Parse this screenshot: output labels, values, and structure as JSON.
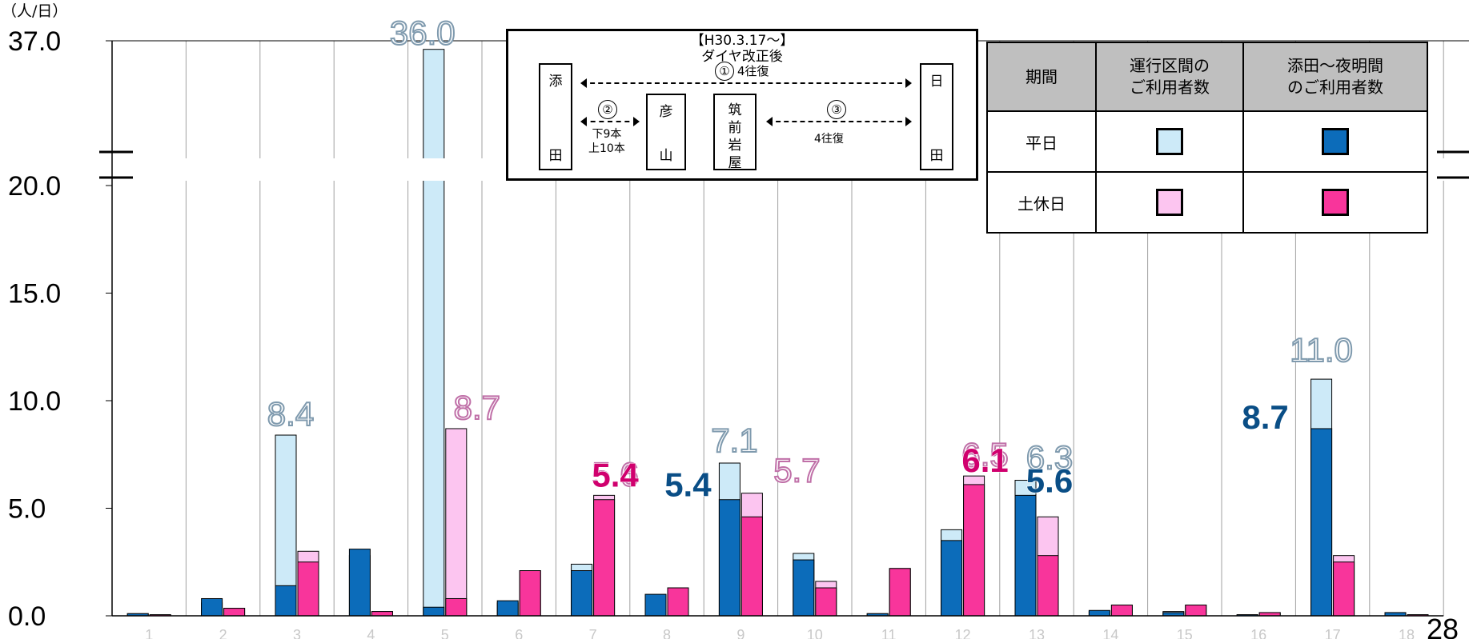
{
  "chart_data": {
    "type": "bar",
    "unit_label": "（人/日）",
    "y_ticks": [
      "0.0",
      "5.0",
      "10.0",
      "15.0",
      "20.0",
      "37.0"
    ],
    "axis_break": [
      20.0,
      37.0
    ],
    "ylim": [
      0,
      37
    ],
    "categories": [
      "1",
      "2",
      "3",
      "4",
      "5",
      "6",
      "7",
      "8",
      "9",
      "10",
      "11",
      "12",
      "13",
      "14",
      "15",
      "16",
      "17",
      "18"
    ],
    "series": [
      {
        "name": "平日 運行区間のご利用者数",
        "color": "#cdeaf8",
        "values": [
          0.1,
          0.6,
          8.4,
          2.8,
          36.0,
          0.6,
          2.4,
          0.9,
          7.1,
          2.9,
          0.1,
          4.0,
          6.3,
          0.2,
          0.2,
          0.05,
          11.0,
          0.15
        ]
      },
      {
        "name": "平日 添田～夜明間のご利用者数",
        "color": "#0c6cba",
        "values": [
          0.1,
          0.8,
          1.4,
          3.1,
          0.4,
          0.7,
          2.1,
          1.0,
          5.4,
          2.6,
          0.1,
          3.5,
          5.6,
          0.25,
          0.15,
          0.05,
          8.7,
          0.15
        ]
      },
      {
        "name": "土休日 運行区間のご利用者数",
        "color": "#fcc5f0",
        "values": [
          0.05,
          0.35,
          3.0,
          0.2,
          8.7,
          2.1,
          5.6,
          1.3,
          5.7,
          1.6,
          2.2,
          6.5,
          4.6,
          0.5,
          0.5,
          0.15,
          2.8,
          0.05
        ]
      },
      {
        "name": "土休日 添田～夜明間のご利用者数",
        "color": "#f8359b",
        "values": [
          0.05,
          0.35,
          2.5,
          0.2,
          0.8,
          2.1,
          5.4,
          1.3,
          4.6,
          1.3,
          2.2,
          6.1,
          2.8,
          0.5,
          0.5,
          0.15,
          2.5,
          0.05
        ]
      }
    ],
    "data_labels": [
      {
        "text": "8.4",
        "category": "3",
        "value": 8.4,
        "series": 0
      },
      {
        "text": "36.0",
        "category": "5",
        "value": 36.0,
        "series": 0
      },
      {
        "text": "8.7",
        "category": "5",
        "value": 8.7,
        "series": 2
      },
      {
        "text": "5.6",
        "category": "7",
        "value": 5.6,
        "series": 2
      },
      {
        "text": "5.4",
        "category": "7",
        "value": 5.4,
        "series": 3
      },
      {
        "text": "7.1",
        "category": "9",
        "value": 7.1,
        "series": 0
      },
      {
        "text": "5.4",
        "category": "9",
        "value": 5.4,
        "series": 1
      },
      {
        "text": "5.7",
        "category": "9",
        "value": 5.7,
        "series": 2
      },
      {
        "text": "6.5",
        "category": "12",
        "value": 6.5,
        "series": 2
      },
      {
        "text": "6.1",
        "category": "12",
        "value": 6.1,
        "series": 3
      },
      {
        "text": "6.3",
        "category": "13",
        "value": 6.3,
        "series": 0
      },
      {
        "text": "5.6",
        "category": "13",
        "value": 5.6,
        "series": 1
      },
      {
        "text": "11.0",
        "category": "17",
        "value": 11.0,
        "series": 0
      },
      {
        "text": "8.7",
        "category": "17",
        "value": 8.7,
        "series": 1
      }
    ],
    "label_colors": {
      "outline_blue": "#7f9aae",
      "outline_pink": "#c070a8",
      "solid_blue": "#0a4e86",
      "solid_pink": "#d0006e"
    },
    "grid": "vertical"
  },
  "diagram": {
    "title_line1": "【H30.3.17～】",
    "title_line2": "ダイヤ改正後",
    "stations": {
      "soeda": {
        "top": "添",
        "bottom": "田"
      },
      "hikosan": {
        "top": "彦",
        "bottom": "山"
      },
      "chikuzen": {
        "line1": "筑",
        "line2": "前",
        "line3": "岩",
        "line4": "屋"
      },
      "hita": {
        "top": "日",
        "bottom": "田"
      }
    },
    "routes": [
      {
        "num": "①",
        "text": "4往復"
      },
      {
        "num": "②",
        "text": "下9本",
        "text2": "上10本"
      },
      {
        "num": "③",
        "text": "4往復"
      }
    ]
  },
  "legend": {
    "col_period": "期間",
    "col_operating_l1": "運行区間の",
    "col_operating_l2": "ご利用者数",
    "col_section_l1": "添田～夜明間",
    "col_section_l2": "のご利用者数",
    "row_weekday": "平日",
    "row_holiday": "土休日"
  },
  "page_number": "28"
}
